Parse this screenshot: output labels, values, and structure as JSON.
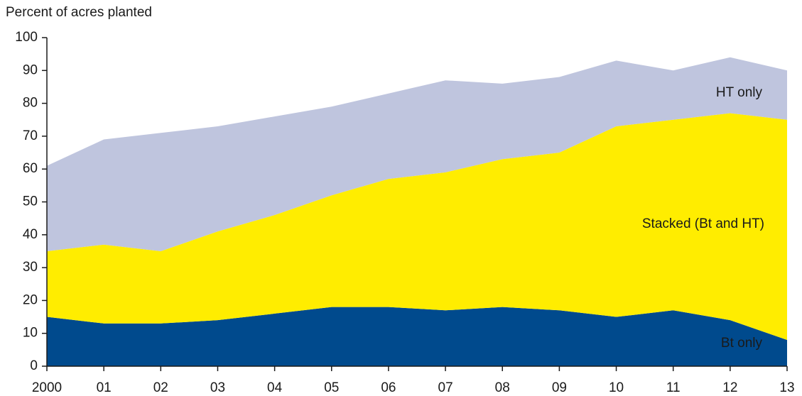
{
  "chart_data": {
    "type": "stacked_area",
    "y_axis_label": "Percent of acres planted",
    "categories": [
      "2000",
      "01",
      "02",
      "03",
      "04",
      "05",
      "06",
      "07",
      "08",
      "09",
      "10",
      "11",
      "12",
      "13"
    ],
    "series": [
      {
        "name": "Bt only",
        "color": "#004a8d",
        "values": [
          15,
          13,
          13,
          14,
          16,
          18,
          18,
          17,
          18,
          17,
          15,
          17,
          14,
          8
        ]
      },
      {
        "name": "Stacked (Bt and HT)",
        "color": "#ffed00",
        "values": [
          20,
          24,
          22,
          27,
          30,
          34,
          39,
          42,
          45,
          48,
          58,
          58,
          63,
          67
        ]
      },
      {
        "name": "HT only",
        "color": "#bfc5de",
        "values": [
          26,
          32,
          36,
          32,
          30,
          27,
          26,
          28,
          23,
          23,
          20,
          15,
          17,
          15
        ]
      }
    ],
    "ylim": [
      0,
      100
    ],
    "yticks": [
      0,
      10,
      20,
      30,
      40,
      50,
      60,
      70,
      80,
      90,
      100
    ]
  }
}
